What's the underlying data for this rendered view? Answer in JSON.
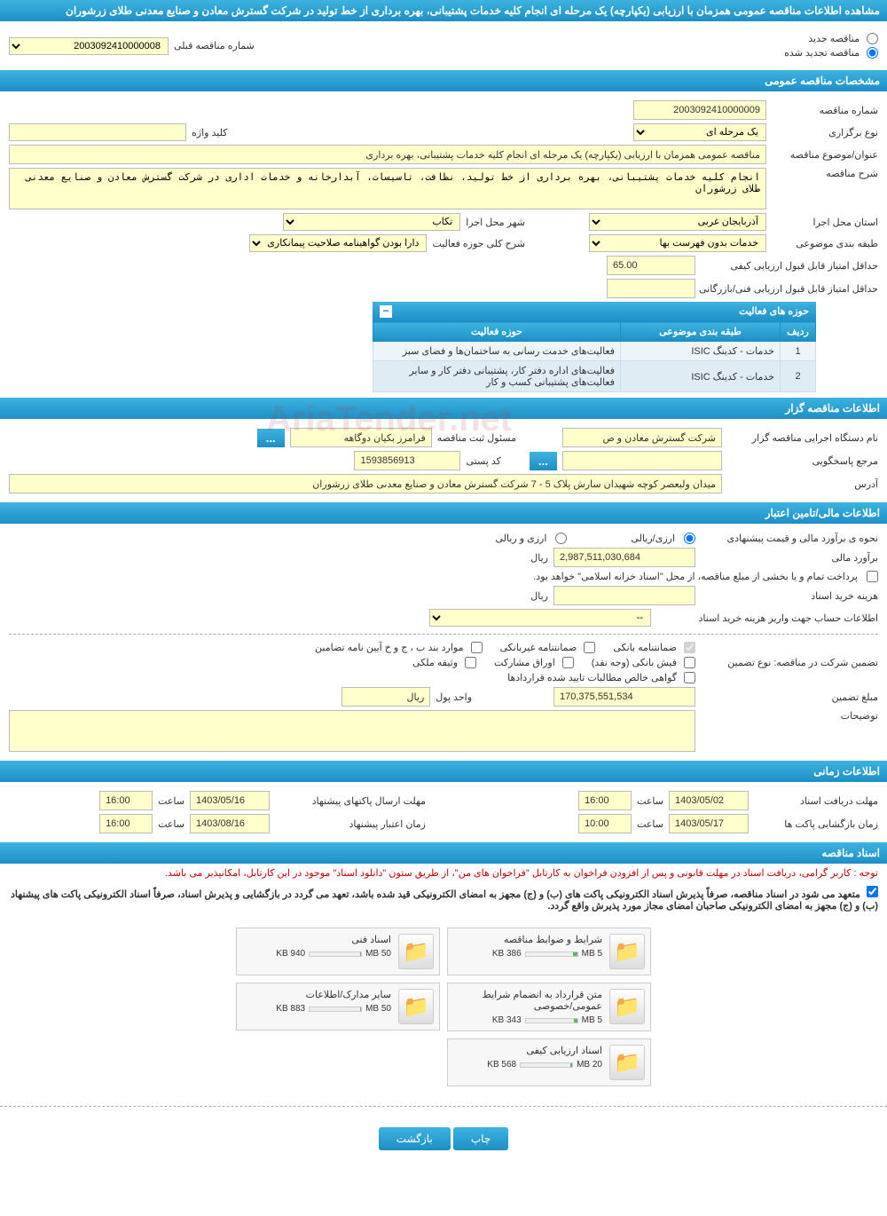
{
  "pageTitle": "مشاهده اطلاعات مناقصه عمومی همزمان با ارزیابی (یکپارچه) یک مرحله ای انجام کلیه خدمات پشتیبانی، بهره برداری از خط تولید در شرکت گسترش معادن و صنایع معدنی طلای زرشوران",
  "topOptions": {
    "new": "مناقصه جدید",
    "renewed": "مناقصه تجدید شده",
    "prevNumberLabel": "شماره مناقصه قبلی",
    "prevNumber": "2003092410000008"
  },
  "sections": {
    "general": "مشخصات مناقصه عمومی",
    "organizer": "اطلاعات مناقصه گزار",
    "financial": "اطلاعات مالی/تامین اعتبار",
    "timing": "اطلاعات زمانی",
    "documents": "اسناد مناقصه"
  },
  "general": {
    "numberLabel": "شماره مناقصه",
    "number": "2003092410000009",
    "typeLabel": "نوع برگزاری",
    "type": "یک مرحله ای",
    "keywordLabel": "کلید واژه",
    "keyword": "",
    "subjectLabel": "عنوان/موضوع مناقصه",
    "subject": "مناقصه عمومی همزمان با ارزیابی (یکپارچه) یک مرحله ای انجام کلیه خدمات پشتیبانی، بهره برداری",
    "descLabel": "شرح مناقصه",
    "desc": "انجام کلیه خدمات پشتیبانی، بهره برداری از خط تولید، نظافت، تاسیسات، آبدارخانه و خدمات اداری در شرکت گسترش معادن و صنایع معدنی طلای زرشوران",
    "provinceLabel": "استان محل اجرا",
    "province": "آذربایجان غربی",
    "cityLabel": "شهر محل اجرا",
    "city": "تکاب",
    "categoryLabel": "طبقه بندی موضوعی",
    "category": "خدمات بدون فهرست بها",
    "scopeDescLabel": "شرح کلی حوزه فعالیت",
    "scopeDesc": "دارا بودن گواهینامه صلاحیت پیمانکاری از وزارت",
    "minQualityLabel": "حداقل امتیاز قابل قبول ارزیابی کیفی",
    "minQuality": "65.00",
    "minTechLabel": "حداقل امتیاز قابل قبول ارزیابی فنی/بازرگانی",
    "minTech": ""
  },
  "activityTable": {
    "title": "حوزه های فعالیت",
    "headers": {
      "row": "ردیف",
      "category": "طبقه بندی موضوعی",
      "scope": "حوزه فعالیت"
    },
    "rows": [
      {
        "n": "1",
        "cat": "خدمات - کدینگ ISIC",
        "scope": "فعالیت‌های خدمت رسانی به ساختمان‌ها و فضای سبز"
      },
      {
        "n": "2",
        "cat": "خدمات - کدینگ ISIC",
        "scope": "فعالیت‌های  اداره دفتر کار، پشتیبانی دفتر کار و سایر فعالیت‌های پشتیبانی کسب و کار"
      }
    ]
  },
  "organizer": {
    "execLabel": "نام دستگاه اجرایی مناقصه گزار",
    "exec": "شرکت گسترش معادن و ص",
    "registrarLabel": "مسئول ثبت مناقصه",
    "registrar": "فرامرز بکیان دوگاهه",
    "contactLabel": "مرجع پاسخگویی",
    "contact": "",
    "postalLabel": "کد پستی",
    "postal": "1593856913",
    "addressLabel": "آدرس",
    "address": "میدان ولیعصر کوچه شهیدان سارش پلاک 5 - 7 شرکت گسترش معادن و صنایع معدنی  طلای زرشوران",
    "dots": "..."
  },
  "financial": {
    "estimateTypeLabel": "نحوه ی برآورد مالی و قیمت پیشنهادی",
    "opt1": "ارزی/ریالی",
    "opt2": "ارزی و ریالی",
    "estimateLabel": "برآورد مالی",
    "estimate": "2,987,511,030,684",
    "currency": "ریال",
    "paymentNote": "پرداخت تمام و یا بخشی از مبلع مناقصه، از محل \"اسناد خزانه اسلامی\" خواهد بود.",
    "docCostLabel": "هزینه خرید اسناد",
    "docCost": "",
    "accountInfoLabel": "اطلاعات حساب جهت واریز هزینه خرید اسناد",
    "accountInfo": "--",
    "guaranteeTypeLabel": "تضمین شرکت در مناقصه:   نوع تضمین",
    "chk1": "ضمانتنامه بانکی",
    "chk2": "ضمانتنامه غیربانکی",
    "chk3": "موارد بند ب ، ج و خ آیین نامه تضامین",
    "chk4": "فیش بانکی (وجه نقد)",
    "chk5": "اوراق مشارکت",
    "chk6": "وثیقه ملکی",
    "chk7": "گواهی خالص مطالبات تایید شده قراردادها",
    "amountLabel": "مبلغ تضمین",
    "amount": "170,375,551,534",
    "unitLabel": "واحد پول",
    "unit": "ریال",
    "notesLabel": "توضیحات",
    "notes": ""
  },
  "timing": {
    "receiveLabel": "مهلت دریافت اسناد",
    "receiveDate": "1403/05/02",
    "receiveTime": "16:00",
    "sendLabel": "مهلت ارسال پاکتهای پیشنهاد",
    "sendDate": "1403/05/16",
    "sendTime": "16:00",
    "openLabel": "زمان بازگشایی پاکت ها",
    "openDate": "1403/05/17",
    "openTime": "10:00",
    "validityLabel": "زمان اعتبار پیشنهاد",
    "validityDate": "1403/08/16",
    "validityTime": "16:00",
    "timeLabel": "ساعت"
  },
  "documents": {
    "redNote": "توجه : کاربر گرامی، دریافت اسناد در مهلت قانونی و پس از افزودن فراخوان به کارتابل \"فراخوان های من\"، از طریق ستون \"دانلود اسناد\" موجود در این کارتابل، امکانپذیر می باشد.",
    "boldNote1": "متعهد می شود در اسناد مناقصه، صرفاً پذیرش اسناد الکترونیکی پاکت های (ب) و (ج) مجهز به امضای الکترونیکی قید شده باشد، تعهد می گردد در بازگشایی و پذیرش اسناد، صرفاً اسناد الکترونیکی پاکت های پیشنهاد (ب) و (ج) مجهز به امضای الکترونیکی صاحبان امضای مجاز مورد پذیرش واقع گردد.",
    "folders": [
      {
        "title": "شرایط و ضوابط مناقصه",
        "used": "386 KB",
        "total": "5 MB",
        "pct": 8
      },
      {
        "title": "اسناد فنی",
        "used": "940 KB",
        "total": "50 MB",
        "pct": 2
      },
      {
        "title": "متن قرارداد به انضمام شرایط عمومی/خصوصی",
        "used": "343 KB",
        "total": "5 MB",
        "pct": 7
      },
      {
        "title": "سایر مدارک/اطلاعات",
        "used": "883 KB",
        "total": "50 MB",
        "pct": 2
      },
      {
        "title": "اسناد ارزیابی کیفی",
        "used": "568 KB",
        "total": "20 MB",
        "pct": 3
      }
    ]
  },
  "buttons": {
    "print": "چاپ",
    "back": "بازگشت"
  },
  "colors": {
    "headerGradStart": "#3db3e0",
    "headerGradEnd": "#1e8fc6",
    "fieldBg": "#ffffcc"
  }
}
